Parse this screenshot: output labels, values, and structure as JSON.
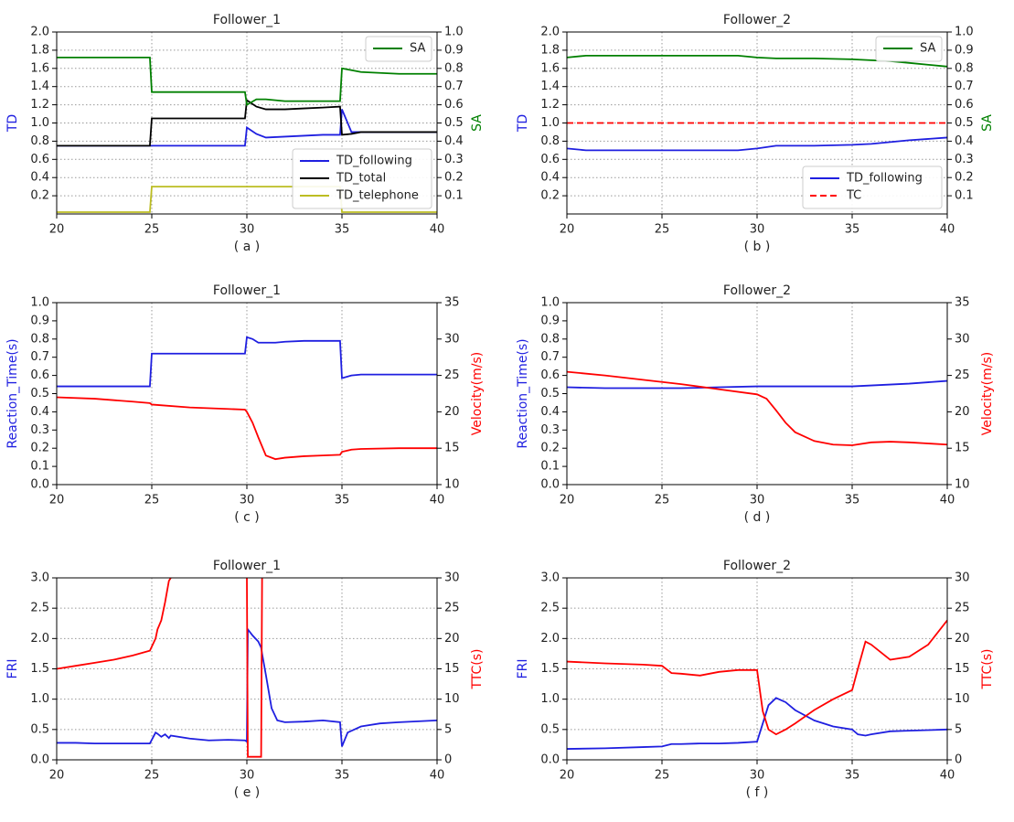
{
  "chart_data": [
    {
      "type": "line",
      "title": "Follower_1",
      "caption": "( a )",
      "ylabel": "TD",
      "ylabel_color": "#1f1fe0",
      "y2label": "SA",
      "y2label_color": "#008000",
      "grid": "both",
      "x": [
        20,
        22,
        24,
        24.9,
        25,
        27,
        29,
        29.9,
        30,
        30.5,
        31,
        32,
        33,
        34,
        34.9,
        35,
        35.5,
        36,
        38,
        40
      ],
      "xlim": [
        20,
        40
      ],
      "xticks": [
        20,
        25,
        30,
        35,
        40
      ],
      "ylim": [
        0,
        2
      ],
      "yticks": [
        0.2,
        0.4,
        0.6,
        0.8,
        {
          "value": 1,
          "label": "1.0"
        },
        1.2,
        1.4,
        1.6,
        1.8,
        {
          "value": 2,
          "label": "2.0"
        }
      ],
      "y2lim": [
        0,
        1
      ],
      "y2ticks": [
        0.1,
        0.2,
        0.3,
        0.4,
        0.5,
        0.6,
        0.7,
        0.8,
        0.9,
        {
          "value": 1,
          "label": "1.0"
        }
      ],
      "series": [
        {
          "name": "TD_following",
          "color": "#1f1fe0",
          "legend": "lower right",
          "values": [
            0.75,
            0.75,
            0.75,
            0.75,
            0.75,
            0.75,
            0.75,
            0.75,
            0.95,
            0.88,
            0.84,
            0.85,
            0.86,
            0.87,
            0.87,
            1.15,
            0.9,
            0.9,
            0.9,
            0.9
          ]
        },
        {
          "name": "TD_total",
          "color": "#000000",
          "legend": "lower right",
          "values": [
            0.75,
            0.75,
            0.75,
            0.75,
            1.05,
            1.05,
            1.05,
            1.05,
            1.25,
            1.18,
            1.15,
            1.15,
            1.16,
            1.17,
            1.18,
            0.87,
            0.88,
            0.9,
            0.9,
            0.9
          ]
        },
        {
          "name": "TD_telephone",
          "color": "#bcbd22",
          "legend": "lower right",
          "values": [
            0.02,
            0.02,
            0.02,
            0.02,
            0.3,
            0.3,
            0.3,
            0.3,
            0.3,
            0.3,
            0.3,
            0.3,
            0.3,
            0.3,
            0.3,
            0.02,
            0.02,
            0.02,
            0.02,
            0.02
          ]
        },
        {
          "name": "SA",
          "color": "#008000",
          "axis": "y2",
          "legend": "upper right",
          "values": [
            0.86,
            0.86,
            0.86,
            0.86,
            0.67,
            0.67,
            0.67,
            0.67,
            0.6,
            0.63,
            0.63,
            0.62,
            0.62,
            0.62,
            0.62,
            0.8,
            0.79,
            0.78,
            0.77,
            0.77
          ]
        }
      ]
    },
    {
      "type": "line",
      "title": "Follower_2",
      "caption": "( b )",
      "ylabel": "TD",
      "ylabel_color": "#1f1fe0",
      "y2label": "SA",
      "y2label_color": "#008000",
      "grid": "both",
      "x": [
        20,
        21,
        23,
        25,
        27,
        29,
        30,
        31,
        33,
        35,
        36,
        37,
        38,
        40
      ],
      "xlim": [
        20,
        40
      ],
      "xticks": [
        20,
        25,
        30,
        35,
        40
      ],
      "ylim": [
        0,
        2
      ],
      "yticks": [
        0.2,
        0.4,
        0.6,
        0.8,
        {
          "value": 1,
          "label": "1.0"
        },
        1.2,
        1.4,
        1.6,
        1.8,
        {
          "value": 2,
          "label": "2.0"
        }
      ],
      "y2lim": [
        0,
        1
      ],
      "y2ticks": [
        0.1,
        0.2,
        0.3,
        0.4,
        0.5,
        0.6,
        0.7,
        0.8,
        0.9,
        {
          "value": 1,
          "label": "1.0"
        }
      ],
      "series": [
        {
          "name": "TD_following",
          "color": "#1f1fe0",
          "legend": "lower right",
          "values": [
            0.72,
            0.7,
            0.7,
            0.7,
            0.7,
            0.7,
            0.72,
            0.75,
            0.75,
            0.76,
            0.77,
            0.79,
            0.81,
            0.84
          ]
        },
        {
          "name": "TC",
          "color": "#ff0000",
          "dash": true,
          "legend": "lower right",
          "values": [
            1,
            1,
            1,
            1,
            1,
            1,
            1,
            1,
            1,
            1,
            1,
            1,
            1,
            1
          ]
        },
        {
          "name": "SA",
          "color": "#008000",
          "axis": "y2",
          "legend": "upper right",
          "values": [
            0.86,
            0.87,
            0.87,
            0.87,
            0.87,
            0.87,
            0.86,
            0.855,
            0.855,
            0.85,
            0.845,
            0.84,
            0.83,
            0.81
          ]
        }
      ]
    },
    {
      "type": "line",
      "title": "Follower_1",
      "caption": "( c )",
      "ylabel": "Reaction_Time(s)",
      "ylabel_color": "#1f1fe0",
      "y2label": "Velocity(m/s)",
      "y2label_color": "#ff0000",
      "grid": "x",
      "x": [
        20,
        22,
        24,
        24.9,
        25,
        27,
        29,
        29.9,
        30,
        30.3,
        30.6,
        31,
        31.5,
        32,
        33,
        34,
        34.9,
        35,
        35.5,
        36,
        38,
        40
      ],
      "xlim": [
        20,
        40
      ],
      "xticks": [
        20,
        25,
        30,
        35,
        40
      ],
      "ylim": [
        0,
        1
      ],
      "yticks": [
        {
          "value": 0,
          "label": "0.0"
        },
        0.1,
        0.2,
        0.3,
        0.4,
        0.5,
        0.6,
        0.7,
        0.8,
        0.9,
        {
          "value": 1,
          "label": "1.0"
        }
      ],
      "y2lim": [
        10,
        35
      ],
      "y2ticks": [
        10,
        15,
        20,
        25,
        30,
        35
      ],
      "series": [
        {
          "color": "#1f1fe0",
          "values": [
            0.54,
            0.54,
            0.54,
            0.54,
            0.72,
            0.72,
            0.72,
            0.72,
            0.81,
            0.8,
            0.78,
            0.78,
            0.78,
            0.785,
            0.79,
            0.79,
            0.79,
            0.585,
            0.6,
            0.605,
            0.605,
            0.605
          ]
        },
        {
          "color": "#ff0000",
          "axis": "y2",
          "values": [
            22,
            21.8,
            21.4,
            21.2,
            21,
            20.6,
            20.4,
            20.3,
            20,
            18.5,
            16.5,
            14,
            13.5,
            13.7,
            13.9,
            14,
            14.1,
            14.5,
            14.8,
            14.9,
            15,
            15
          ]
        }
      ]
    },
    {
      "type": "line",
      "title": "Follower_2",
      "caption": "( d )",
      "ylabel": "Reaction_Time(s)",
      "ylabel_color": "#1f1fe0",
      "y2label": "Velocity(m/s)",
      "y2label_color": "#ff0000",
      "grid": "x",
      "x": [
        20,
        22,
        24,
        26,
        28,
        30,
        30.5,
        31,
        31.5,
        32,
        33,
        34,
        35,
        36,
        37,
        38,
        40
      ],
      "xlim": [
        20,
        40
      ],
      "xticks": [
        20,
        25,
        30,
        35,
        40
      ],
      "ylim": [
        0,
        1
      ],
      "yticks": [
        {
          "value": 0,
          "label": "0.0"
        },
        0.1,
        0.2,
        0.3,
        0.4,
        0.5,
        0.6,
        0.7,
        0.8,
        0.9,
        {
          "value": 1,
          "label": "1.0"
        }
      ],
      "y2lim": [
        10,
        35
      ],
      "y2ticks": [
        10,
        15,
        20,
        25,
        30,
        35
      ],
      "series": [
        {
          "color": "#1f1fe0",
          "values": [
            0.535,
            0.53,
            0.53,
            0.53,
            0.535,
            0.54,
            0.54,
            0.54,
            0.54,
            0.54,
            0.54,
            0.54,
            0.54,
            0.545,
            0.55,
            0.555,
            0.57
          ]
        },
        {
          "color": "#ff0000",
          "axis": "y2",
          "values": [
            25.5,
            25,
            24.4,
            23.8,
            23.1,
            22.4,
            21.8,
            20.2,
            18.5,
            17.2,
            16,
            15.5,
            15.4,
            15.8,
            15.9,
            15.8,
            15.5
          ]
        }
      ]
    },
    {
      "type": "line",
      "title": "Follower_1",
      "caption": "( e )",
      "ylabel": "FRI",
      "ylabel_color": "#1f1fe0",
      "y2label": "TTC(s)",
      "y2label_color": "#ff0000",
      "grid": "both",
      "x": [
        20,
        21,
        22,
        23,
        24,
        24.9,
        25.2,
        25.3,
        25.5,
        25.7,
        25.9,
        26,
        27,
        28,
        29,
        29.9,
        30,
        30.05,
        30.3,
        30.6,
        30.75,
        30.8,
        31,
        31.3,
        31.6,
        32,
        33,
        34,
        34.9,
        35,
        35.3,
        36,
        37,
        38,
        40
      ],
      "xlim": [
        20,
        40
      ],
      "xticks": [
        20,
        25,
        30,
        35,
        40
      ],
      "ylim": [
        0,
        3
      ],
      "yticks": [
        {
          "value": 0,
          "label": "0.0"
        },
        0.5,
        {
          "value": 1,
          "label": "1.0"
        },
        1.5,
        {
          "value": 2,
          "label": "2.0"
        },
        2.5,
        {
          "value": 3,
          "label": "3.0"
        }
      ],
      "y2lim": [
        0,
        30
      ],
      "y2ticks": [
        0,
        5,
        10,
        15,
        20,
        25,
        30
      ],
      "series": [
        {
          "color": "#1f1fe0",
          "values": [
            0.28,
            0.28,
            0.27,
            0.27,
            0.27,
            0.27,
            0.45,
            0.43,
            0.38,
            0.42,
            0.36,
            0.4,
            0.35,
            0.32,
            0.33,
            0.32,
            0.3,
            2.15,
            2.05,
            1.95,
            1.85,
            1.75,
            1.4,
            0.85,
            0.65,
            0.62,
            0.63,
            0.65,
            0.62,
            0.22,
            0.45,
            0.55,
            0.6,
            0.62,
            0.65
          ]
        },
        {
          "color": "#ff0000",
          "axis": "y2",
          "values": [
            15,
            15.5,
            16,
            16.5,
            17.2,
            18,
            20,
            21.5,
            23,
            26,
            29.5,
            30,
            null,
            null,
            null,
            null,
            30,
            0.5,
            0.5,
            0.5,
            0.5,
            30,
            null,
            null,
            null,
            null,
            null,
            null,
            null,
            null,
            null,
            null,
            null,
            null,
            null
          ]
        }
      ]
    },
    {
      "type": "line",
      "title": "Follower_2",
      "caption": "( f )",
      "ylabel": "FRI",
      "ylabel_color": "#1f1fe0",
      "y2label": "TTC(s)",
      "y2label_color": "#ff0000",
      "grid": "both",
      "x": [
        20,
        22,
        24,
        25,
        25.5,
        26,
        27,
        28,
        29,
        30,
        30.3,
        30.6,
        31,
        31.5,
        32,
        33,
        34,
        35,
        35.3,
        35.7,
        36,
        37,
        38,
        39,
        40
      ],
      "xlim": [
        20,
        40
      ],
      "xticks": [
        20,
        25,
        30,
        35,
        40
      ],
      "ylim": [
        0,
        3
      ],
      "yticks": [
        {
          "value": 0,
          "label": "0.0"
        },
        0.5,
        {
          "value": 1,
          "label": "1.0"
        },
        1.5,
        {
          "value": 2,
          "label": "2.0"
        },
        2.5,
        {
          "value": 3,
          "label": "3.0"
        }
      ],
      "y2lim": [
        0,
        30
      ],
      "y2ticks": [
        0,
        5,
        10,
        15,
        20,
        25,
        30
      ],
      "series": [
        {
          "color": "#1f1fe0",
          "values": [
            0.18,
            0.19,
            0.21,
            0.22,
            0.26,
            0.26,
            0.27,
            0.27,
            0.28,
            0.3,
            0.6,
            0.9,
            1.02,
            0.95,
            0.82,
            0.65,
            0.55,
            0.5,
            0.42,
            0.4,
            0.42,
            0.47,
            0.48,
            0.49,
            0.5
          ]
        },
        {
          "color": "#ff0000",
          "axis": "y2",
          "values": [
            16.2,
            15.9,
            15.7,
            15.5,
            14.3,
            14.2,
            13.9,
            14.5,
            14.8,
            14.8,
            8,
            5,
            4.2,
            5,
            6,
            8.2,
            10,
            11.5,
            15,
            19.5,
            19,
            16.5,
            17,
            19,
            23
          ]
        }
      ]
    }
  ]
}
